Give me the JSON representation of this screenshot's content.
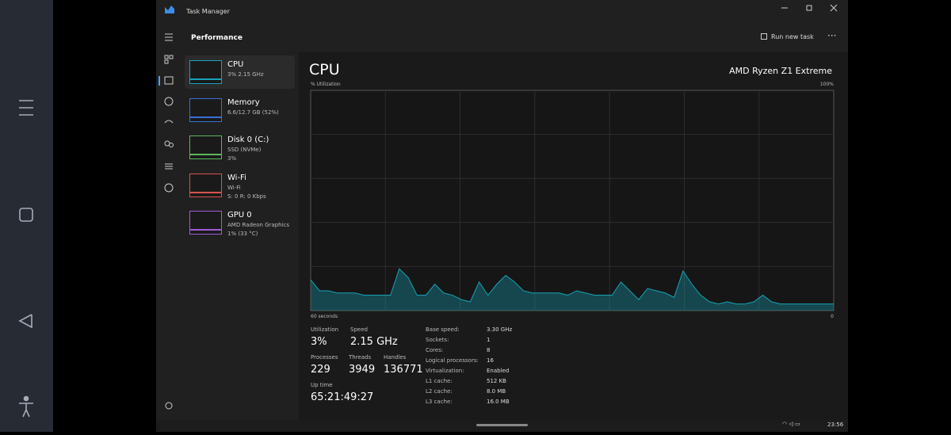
{
  "window": {
    "title": "Task Manager"
  },
  "toolbar": {
    "page_title": "Performance",
    "run_new_task": "Run new task"
  },
  "devices": [
    {
      "name": "CPU",
      "lines": [
        "3% 2.15 GHz"
      ]
    },
    {
      "name": "Memory",
      "lines": [
        "6.6/12.7 GB (52%)"
      ]
    },
    {
      "name": "Disk 0 (C:)",
      "lines": [
        "SSD (NVMe)",
        "3%"
      ]
    },
    {
      "name": "Wi-Fi",
      "lines": [
        "Wi-Fi",
        "S: 0 R: 0 Kbps"
      ]
    },
    {
      "name": "GPU 0",
      "lines": [
        "AMD Radeon Graphics",
        "1% (33 °C)"
      ]
    }
  ],
  "detail": {
    "heading": "CPU",
    "model": "AMD Ryzen Z1 Extreme",
    "chart_data": {
      "type": "area",
      "y_label": "% Utilization",
      "x_label": "60 seconds",
      "ylim": [
        0,
        100
      ],
      "yticks": [
        {
          "value": 0,
          "label": "0"
        },
        {
          "value": 100,
          "label": "100%"
        }
      ],
      "color": "#17a2b8",
      "values": [
        14,
        9,
        9,
        8,
        8,
        8,
        7,
        7,
        7,
        7,
        19,
        15,
        7,
        7,
        12,
        8,
        7,
        5,
        4,
        13,
        7,
        12,
        16,
        13,
        9,
        8,
        8,
        8,
        8,
        7,
        9,
        8,
        7,
        7,
        7,
        13,
        9,
        5,
        10,
        9,
        8,
        6,
        18,
        12,
        7,
        4,
        3,
        4,
        3,
        3,
        4,
        7,
        4,
        3,
        3,
        3,
        3,
        3,
        3,
        3
      ]
    },
    "stats": [
      {
        "label": "Utilization",
        "value": "3%"
      },
      {
        "label": "Speed",
        "value": "2.15 GHz"
      },
      {
        "label": "Processes",
        "value": "229"
      },
      {
        "label": "Threads",
        "value": "3949"
      },
      {
        "label": "Handles",
        "value": "136771"
      },
      {
        "label": "Up time",
        "value": "65:21:49:27"
      }
    ],
    "specs": [
      [
        "Base speed:",
        "3.30 GHz"
      ],
      [
        "Sockets:",
        "1"
      ],
      [
        "Cores:",
        "8"
      ],
      [
        "Logical processors:",
        "16"
      ],
      [
        "Virtualization:",
        "Enabled"
      ],
      [
        "L1 cache:",
        "512 KB"
      ],
      [
        "L2 cache:",
        "8.0 MB"
      ],
      [
        "L3 cache:",
        "16.0 MB"
      ]
    ]
  },
  "taskbar": {
    "time": "23:56"
  }
}
